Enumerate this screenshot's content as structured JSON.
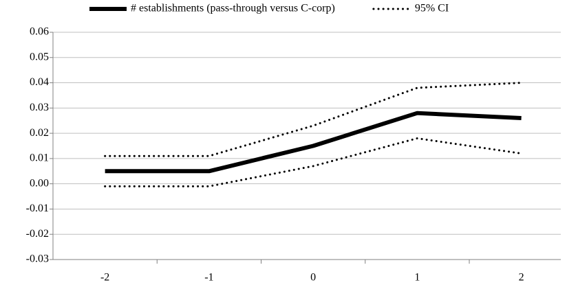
{
  "chart_data": {
    "type": "line",
    "categories": [
      "-2",
      "-1",
      "0",
      "1",
      "2"
    ],
    "series": [
      {
        "name": "# establishments (pass-through versus C-corp)",
        "color": "#000000",
        "style": "solid",
        "values": [
          0.005,
          0.005,
          0.015,
          0.028,
          0.026
        ]
      },
      {
        "name": "95% CI",
        "color": "#000000",
        "style": "dotted",
        "values": [
          0.011,
          0.011,
          0.023,
          0.038,
          0.04
        ]
      },
      {
        "color": "#000000",
        "style": "dotted",
        "values": [
          -0.001,
          -0.001,
          0.007,
          0.018,
          0.012
        ]
      }
    ],
    "ylim": [
      -0.03,
      0.06
    ],
    "yticks": [
      -0.03,
      -0.02,
      -0.01,
      {
        "value": 0,
        "label": "0.00"
      },
      0.01,
      0.02,
      0.03,
      0.04,
      0.05,
      0.06
    ],
    "grid": true,
    "legend": "top"
  }
}
